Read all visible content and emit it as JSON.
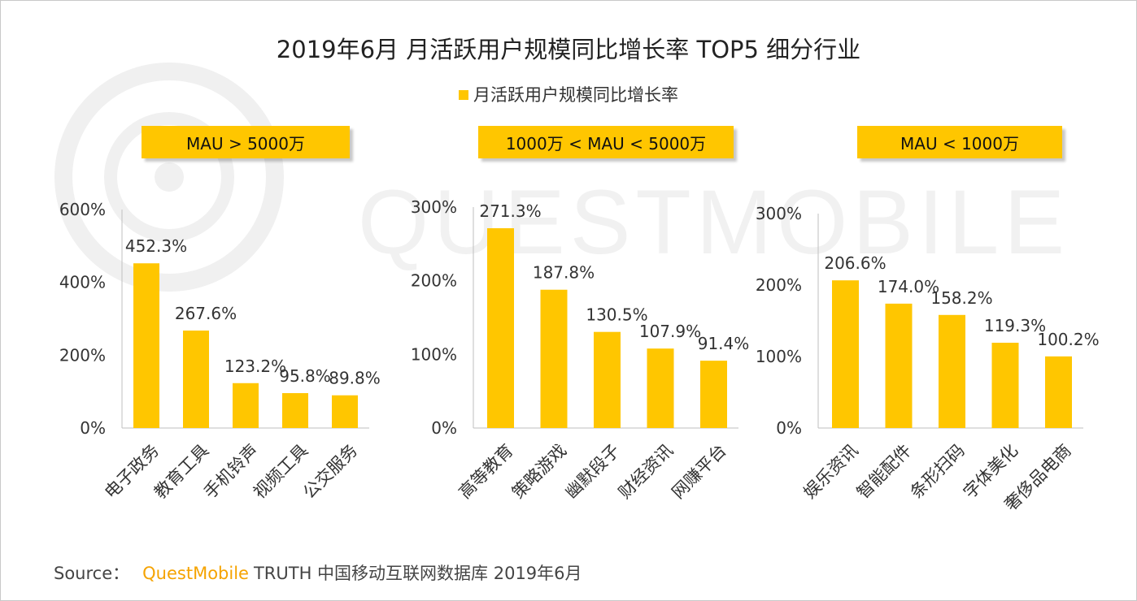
{
  "title": "2019年6月 月活跃用户规模同比增长率 TOP5 细分行业",
  "legend": "月活跃用户规模同比增长率",
  "watermark": "QUESTMOBILE",
  "source": {
    "label": "Source：",
    "brand": "QuestMobile",
    "text": "TRUTH 中国移动互联网数据库 2019年6月"
  },
  "colors": {
    "bar": "#FFC600",
    "axis": "#bfbfbf",
    "brand": "#F5A300"
  },
  "chart_data": [
    {
      "type": "bar",
      "panel_label": "MAU > 5000万",
      "categories": [
        "电子政务",
        "教育工具",
        "手机铃声",
        "视频工具",
        "公交服务"
      ],
      "values": [
        452.3,
        267.6,
        123.2,
        95.8,
        89.8
      ],
      "value_labels": [
        "452.3%",
        "267.6%",
        "123.2%",
        "95.8%",
        "89.8%"
      ],
      "yticks": [
        "0%",
        "200%",
        "400%",
        "600%"
      ],
      "ytick_values": [
        0,
        200,
        400,
        600
      ],
      "ylim": [
        0,
        600
      ]
    },
    {
      "type": "bar",
      "panel_label": "1000万 < MAU < 5000万",
      "categories": [
        "高等教育",
        "策略游戏",
        "幽默段子",
        "财经资讯",
        "网赚平台"
      ],
      "values": [
        271.3,
        187.8,
        130.5,
        107.9,
        91.4
      ],
      "value_labels": [
        "271.3%",
        "187.8%",
        "130.5%",
        "107.9%",
        "91.4%"
      ],
      "yticks": [
        "0%",
        "100%",
        "200%",
        "300%"
      ],
      "ytick_values": [
        0,
        100,
        200,
        300
      ],
      "ylim": [
        0,
        300
      ]
    },
    {
      "type": "bar",
      "panel_label": "MAU < 1000万",
      "categories": [
        "娱乐资讯",
        "智能配件",
        "条形扫码",
        "字体美化",
        "奢侈品电商"
      ],
      "values": [
        206.6,
        174.0,
        158.2,
        119.3,
        100.2
      ],
      "value_labels": [
        "206.6%",
        "174.0%",
        "158.2%",
        "119.3%",
        "100.2%"
      ],
      "yticks": [
        "0%",
        "100%",
        "200%",
        "300%"
      ],
      "ytick_values": [
        0,
        100,
        200,
        300
      ],
      "ylim": [
        0,
        300
      ]
    }
  ]
}
